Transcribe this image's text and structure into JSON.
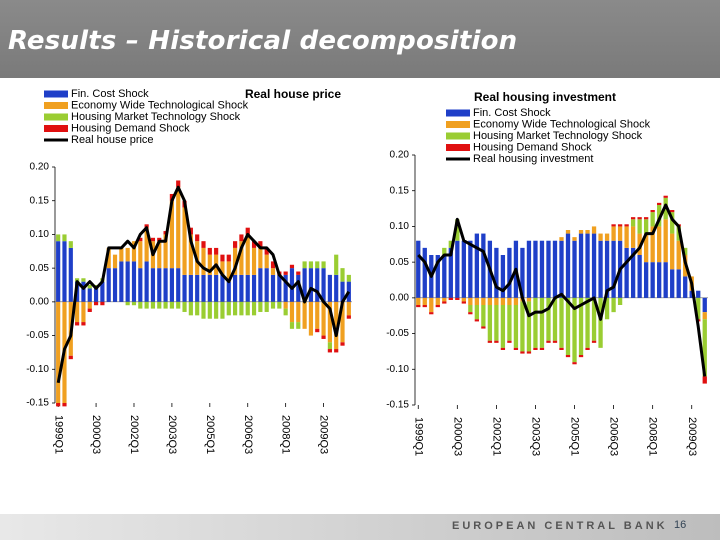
{
  "header": {
    "title": "Results – Historical decomposition"
  },
  "footer": {
    "organization": "EUROPEAN CENTRAL BANK",
    "page": "16"
  },
  "chart_data": [
    {
      "type": "bar",
      "stacked": true,
      "title": "Real house price",
      "categories": [
        "1999Q1",
        null,
        null,
        null,
        null,
        null,
        "2000Q3",
        null,
        null,
        null,
        null,
        null,
        "2002Q1",
        null,
        null,
        null,
        null,
        null,
        "2003Q3",
        null,
        null,
        null,
        null,
        null,
        "2005Q1",
        null,
        null,
        null,
        null,
        null,
        "2006Q3",
        null,
        null,
        null,
        null,
        null,
        "2008Q1",
        null,
        null,
        null,
        null,
        null,
        "2009Q3",
        null,
        null,
        null,
        null
      ],
      "ylim": [
        -0.15,
        0.2
      ],
      "yticks": [
        {
          "value": -0.15,
          "label": "-0.15"
        },
        {
          "value": -0.1,
          "label": "-0.10"
        },
        {
          "value": -0.05,
          "label": "-0.05"
        },
        {
          "value": 0,
          "label": "0.00"
        },
        {
          "value": 0.05,
          "label": "0.05"
        },
        {
          "value": 0.1,
          "label": "0.10"
        },
        {
          "value": 0.15,
          "label": "0.15"
        },
        {
          "value": 0.2,
          "label": "0.20"
        }
      ],
      "series": [
        {
          "name": "Fin. Cost Shock",
          "color": "#1f3fc8",
          "values": [
            0.09,
            0.09,
            0.08,
            0.03,
            0.03,
            0.02,
            0.02,
            0.03,
            0.05,
            0.05,
            0.06,
            0.06,
            0.06,
            0.05,
            0.06,
            0.05,
            0.05,
            0.05,
            0.05,
            0.05,
            0.04,
            0.04,
            0.04,
            0.04,
            0.04,
            0.04,
            0.04,
            0.03,
            0.04,
            0.04,
            0.04,
            0.04,
            0.05,
            0.05,
            0.04,
            0.04,
            0.04,
            0.05,
            0.04,
            0.05,
            0.05,
            0.05,
            0.05,
            0.04,
            0.04,
            0.03,
            0.03
          ]
        },
        {
          "name": "Economy Wide Technological Shock",
          "color": "#f0a020",
          "values": [
            -0.15,
            -0.15,
            -0.08,
            -0.03,
            -0.03,
            -0.01,
            0,
            0,
            0.03,
            0.02,
            0.02,
            0.02,
            0.03,
            0.04,
            0.05,
            0.04,
            0.04,
            0.05,
            0.1,
            0.12,
            0.1,
            0.06,
            0.05,
            0.04,
            0.03,
            0.03,
            0.02,
            0.03,
            0.04,
            0.05,
            0.06,
            0.04,
            0.03,
            0.02,
            0.01,
            0,
            -0.01,
            -0.03,
            -0.03,
            -0.04,
            -0.05,
            -0.04,
            -0.05,
            -0.06,
            -0.07,
            -0.06,
            -0.02
          ]
        },
        {
          "name": "Housing Market Technology Shock",
          "color": "#9acd32",
          "values": [
            0.01,
            0.01,
            0.01,
            0.005,
            0.005,
            0.005,
            0.005,
            0.005,
            0,
            0,
            0,
            -0.005,
            -0.005,
            -0.01,
            -0.01,
            -0.01,
            -0.01,
            -0.01,
            -0.01,
            -0.01,
            -0.015,
            -0.02,
            -0.02,
            -0.025,
            -0.025,
            -0.025,
            -0.025,
            -0.02,
            -0.02,
            -0.02,
            -0.02,
            -0.02,
            -0.015,
            -0.015,
            -0.01,
            -0.01,
            -0.01,
            -0.01,
            -0.01,
            0.01,
            0.01,
            0.01,
            0.01,
            -0.01,
            0.03,
            0.02,
            0.01
          ]
        },
        {
          "name": "Housing Demand Shock",
          "color": "#e01010",
          "values": [
            -0.005,
            -0.005,
            -0.005,
            -0.005,
            -0.005,
            -0.005,
            -0.005,
            -0.005,
            0,
            0,
            0,
            0,
            0,
            0.005,
            0.005,
            0.005,
            0.005,
            0.005,
            0.01,
            0.01,
            0.01,
            0.01,
            0.01,
            0.01,
            0.01,
            0.01,
            0.01,
            0.01,
            0.01,
            0.01,
            0.01,
            0.01,
            0.01,
            0.01,
            0.01,
            0.005,
            0.005,
            0.005,
            0.005,
            0,
            0,
            -0.005,
            -0.005,
            -0.005,
            -0.005,
            -0.005,
            -0.005
          ]
        },
        {
          "name": "Real house price",
          "type": "line",
          "color": "#000000",
          "values": [
            -0.12,
            -0.07,
            -0.05,
            0.03,
            0.02,
            0.03,
            0.02,
            0.03,
            0.08,
            0.08,
            0.08,
            0.09,
            0.08,
            0.1,
            0.11,
            0.07,
            0.09,
            0.09,
            0.15,
            0.17,
            0.15,
            0.09,
            0.06,
            0.05,
            0.045,
            0.055,
            0.04,
            0.03,
            0.05,
            0.08,
            0.1,
            0.09,
            0.08,
            0.08,
            0.07,
            0.04,
            0.03,
            0.02,
            0.03,
            0,
            0.02,
            0.015,
            0,
            -0.01,
            -0.05,
            0,
            0.015
          ]
        }
      ]
    },
    {
      "type": "bar",
      "stacked": true,
      "title": "Real housing investment",
      "categories": [
        "1999Q1",
        null,
        null,
        null,
        null,
        null,
        "2000Q3",
        null,
        null,
        null,
        null,
        null,
        "2002Q1",
        null,
        null,
        null,
        null,
        null,
        "2003Q3",
        null,
        null,
        null,
        null,
        null,
        "2005Q1",
        null,
        null,
        null,
        null,
        null,
        "2006Q3",
        null,
        null,
        null,
        null,
        null,
        "2008Q1",
        null,
        null,
        null,
        null,
        null,
        "2009Q3",
        null,
        null
      ],
      "ylim": [
        -0.15,
        0.2
      ],
      "yticks": [
        {
          "value": -0.15,
          "label": "-0.15"
        },
        {
          "value": -0.1,
          "label": "-0.10"
        },
        {
          "value": -0.05,
          "label": "-0.05"
        },
        {
          "value": 0,
          "label": "0.00"
        },
        {
          "value": 0.05,
          "label": "0.05"
        },
        {
          "value": 0.1,
          "label": "0.10"
        },
        {
          "value": 0.15,
          "label": "0.15"
        },
        {
          "value": 0.2,
          "label": "0.20"
        }
      ],
      "series": [
        {
          "name": "Fin. Cost Shock",
          "color": "#1f3fc8",
          "values": [
            0.08,
            0.07,
            0.06,
            0.06,
            0.06,
            0.07,
            0.08,
            0.08,
            0.08,
            0.09,
            0.09,
            0.08,
            0.07,
            0.06,
            0.07,
            0.08,
            0.07,
            0.08,
            0.08,
            0.08,
            0.08,
            0.08,
            0.08,
            0.09,
            0.08,
            0.09,
            0.09,
            0.09,
            0.08,
            0.08,
            0.08,
            0.08,
            0.07,
            0.07,
            0.06,
            0.05,
            0.05,
            0.05,
            0.05,
            0.04,
            0.04,
            0.03,
            0.01,
            0.01,
            -0.02
          ]
        },
        {
          "name": "Economy Wide Technological Shock",
          "color": "#f0a020",
          "values": [
            -0.01,
            -0.01,
            -0.02,
            -0.01,
            -0.005,
            0,
            0,
            -0.005,
            -0.01,
            -0.01,
            -0.01,
            -0.01,
            -0.01,
            -0.01,
            -0.01,
            -0.01,
            -0.005,
            -0.005,
            0,
            0,
            0,
            0,
            0.005,
            0.005,
            0.005,
            0.005,
            0.005,
            0.01,
            0.01,
            0.01,
            0.02,
            0.02,
            0.03,
            0.03,
            0.03,
            0.04,
            0.05,
            0.05,
            0.06,
            0.05,
            0.04,
            0.03,
            0.02,
            0,
            -0.01
          ]
        },
        {
          "name": "Housing Market Technology Shock",
          "color": "#9acd32",
          "values": [
            0,
            0,
            0,
            0,
            0.01,
            0.01,
            0.03,
            0,
            -0.01,
            -0.02,
            -0.03,
            -0.05,
            -0.05,
            -0.06,
            -0.05,
            -0.06,
            -0.07,
            -0.07,
            -0.07,
            -0.07,
            -0.06,
            -0.06,
            -0.07,
            -0.08,
            -0.09,
            -0.08,
            -0.07,
            -0.06,
            -0.07,
            -0.03,
            -0.02,
            -0.01,
            0,
            0.01,
            0.02,
            0.02,
            0.02,
            0.03,
            0.03,
            0.03,
            0.02,
            0.01,
            0,
            -0.03,
            -0.08
          ]
        },
        {
          "name": "Housing Demand Shock",
          "color": "#e01010",
          "values": [
            -0.003,
            -0.003,
            -0.003,
            -0.003,
            -0.003,
            -0.003,
            -0.003,
            -0.003,
            -0.003,
            -0.003,
            -0.003,
            -0.003,
            -0.003,
            -0.003,
            -0.003,
            -0.003,
            -0.003,
            -0.003,
            -0.003,
            -0.003,
            -0.003,
            -0.003,
            -0.003,
            -0.003,
            -0.003,
            -0.003,
            -0.003,
            -0.003,
            0,
            0,
            0.003,
            0.003,
            0.003,
            0.003,
            0.003,
            0.003,
            0.003,
            0.003,
            0.003,
            0.003,
            0.003,
            0,
            0,
            -0.003,
            -0.01
          ]
        },
        {
          "name": "Real housing investment",
          "type": "line",
          "color": "#000000",
          "values": [
            0.06,
            0.05,
            0.03,
            0.05,
            0.06,
            0.06,
            0.11,
            0.08,
            0.075,
            0.07,
            0.065,
            0.04,
            0.015,
            0.01,
            0.02,
            0.04,
            0,
            -0.025,
            -0.02,
            -0.02,
            -0.015,
            0,
            0.005,
            -0.005,
            -0.015,
            -0.01,
            -0.005,
            0,
            -0.03,
            0.01,
            0.015,
            0.04,
            0.05,
            0.06,
            0.07,
            0.09,
            0.09,
            0.11,
            0.13,
            0.11,
            0.1,
            0.05,
            0.02,
            -0.04,
            -0.11
          ]
        }
      ]
    }
  ]
}
